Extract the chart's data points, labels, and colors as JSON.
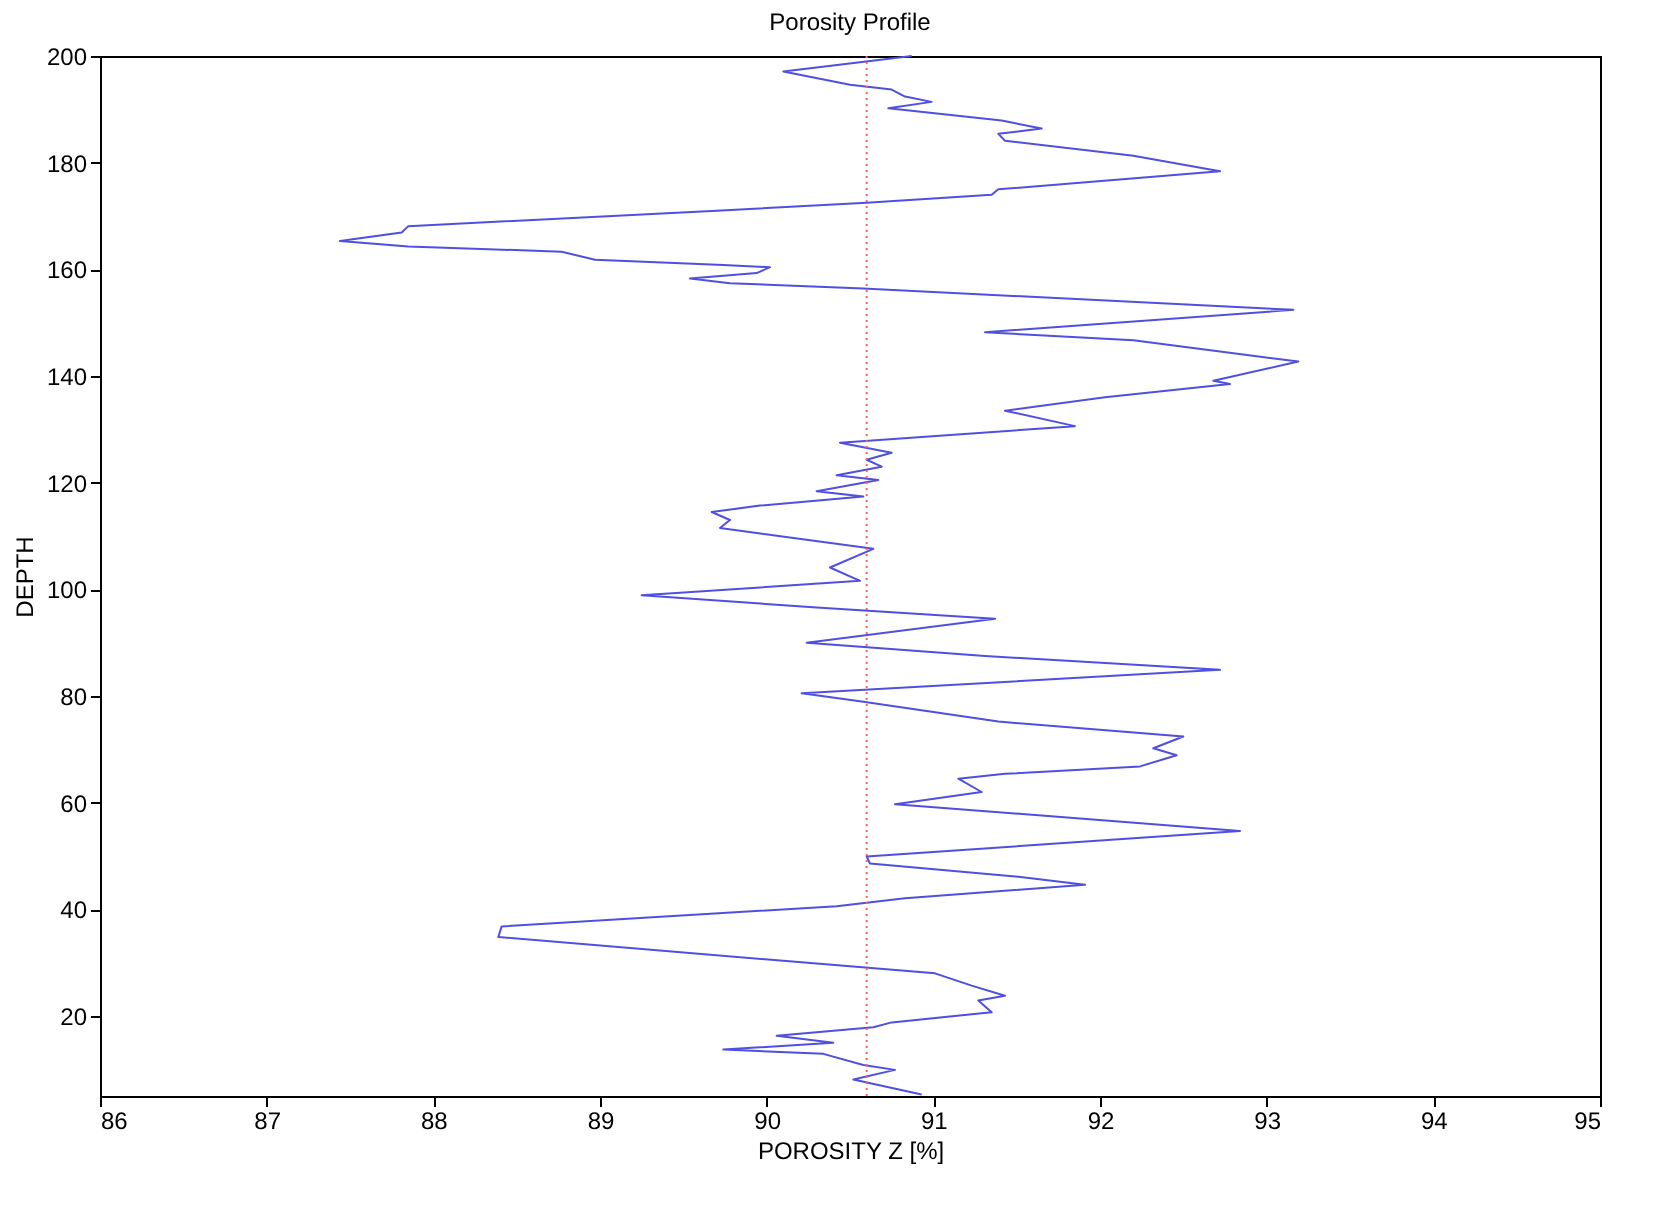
{
  "chart_data": {
    "type": "line",
    "title": "Porosity Profile",
    "xlabel": "POROSITY Z [%]",
    "ylabel": "DEPTH",
    "xlim": [
      86,
      95
    ],
    "xticks": [
      86,
      87,
      88,
      89,
      90,
      91,
      92,
      93,
      94,
      95
    ],
    "ylim": [
      5,
      200
    ],
    "yticks": [
      20,
      40,
      60,
      80,
      100,
      120,
      140,
      160,
      180,
      200
    ],
    "grid": false,
    "line_style": "solid",
    "marker": "none",
    "series": [
      {
        "color": "#4f4fe0",
        "x": [
          90.87,
          90.1,
          90.5,
          90.75,
          90.83,
          90.99,
          90.73,
          91.41,
          91.65,
          91.39,
          91.43,
          92.2,
          92.72,
          91.39,
          91.35,
          90.6,
          89.7,
          87.85,
          87.81,
          87.44,
          87.85,
          88.77,
          88.97,
          89.74,
          90.02,
          89.94,
          89.54,
          89.78,
          90.58,
          93.16,
          91.31,
          92.2,
          93.19,
          92.68,
          92.78,
          92.03,
          91.43,
          91.85,
          90.44,
          90.75,
          90.6,
          90.69,
          90.42,
          90.67,
          90.3,
          90.58,
          89.96,
          89.67,
          89.78,
          89.72,
          90.64,
          90.38,
          90.56,
          89.25,
          90.3,
          91.37,
          90.24,
          91.31,
          92.72,
          90.21,
          90.56,
          91.39,
          92.5,
          92.32,
          92.46,
          92.24,
          91.43,
          91.15,
          91.29,
          90.77,
          92.84,
          90.6,
          90.62,
          91.51,
          91.91,
          90.83,
          90.42,
          88.41,
          88.39,
          91.01,
          91.23,
          91.43,
          91.27,
          91.35,
          90.75,
          90.64,
          90.06,
          90.4,
          89.74,
          90.34,
          90.58,
          90.77,
          90.52,
          90.93
        ],
        "values": [
          200,
          197.1,
          194.6,
          193.7,
          192.4,
          191.4,
          190.2,
          187.9,
          186.4,
          185.4,
          184.1,
          181.3,
          178.4,
          175.0,
          174.0,
          172.5,
          171.0,
          168.1,
          166.9,
          165.3,
          164.3,
          163.3,
          161.8,
          160.8,
          160.4,
          159.3,
          158.3,
          157.4,
          156.4,
          152.4,
          148.2,
          146.7,
          142.7,
          139.1,
          138.5,
          136.0,
          133.5,
          130.6,
          127.5,
          125.6,
          124.3,
          123.0,
          121.4,
          120.5,
          118.4,
          117.4,
          115.7,
          114.5,
          113.0,
          111.5,
          107.6,
          104.1,
          101.6,
          98.9,
          96.6,
          94.5,
          90.0,
          87.5,
          84.9,
          80.5,
          79.0,
          75.2,
          72.4,
          70.2,
          68.9,
          66.8,
          65.4,
          64.5,
          62.0,
          59.7,
          54.7,
          49.9,
          48.6,
          46.1,
          44.6,
          42.1,
          40.6,
          36.8,
          34.8,
          28.0,
          25.7,
          23.8,
          22.9,
          20.7,
          18.8,
          17.9,
          16.3,
          15.0,
          13.7,
          12.9,
          10.8,
          9.9,
          8.1,
          5.3
        ]
      }
    ],
    "ref_lines": [
      {
        "axis": "x",
        "value": 90.6,
        "color": "#ff6060",
        "line_style": "dotted"
      }
    ]
  }
}
